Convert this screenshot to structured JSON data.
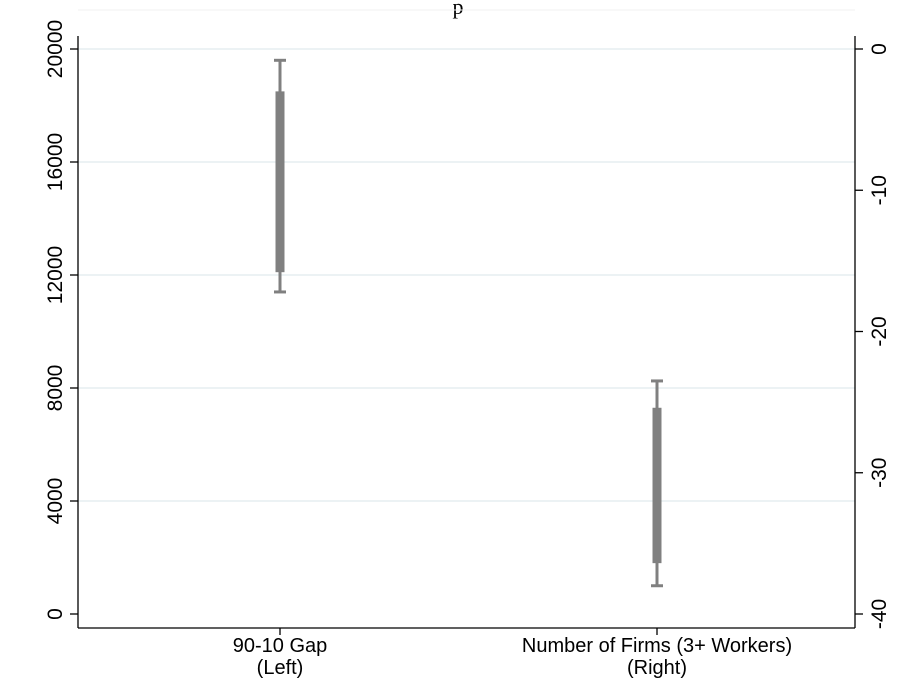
{
  "chart_data": {
    "type": "range",
    "title": "p",
    "categories": [
      {
        "line1": "90-10 Gap",
        "line2": "(Left)",
        "axis": "left"
      },
      {
        "line1": "Number of Firms (3+ Workers)",
        "line2": "(Right)",
        "axis": "right"
      }
    ],
    "series": [
      {
        "axis": "left",
        "category_index": 0,
        "whisker_low": 11400,
        "whisker_high": 19600,
        "bar_low": 12100,
        "bar_high": 18500
      },
      {
        "axis": "right",
        "category_index": 1,
        "whisker_low": -38.0,
        "whisker_high": -23.5,
        "bar_low": -36.4,
        "bar_high": -25.4
      }
    ],
    "left_axis": {
      "ylim": [
        0,
        20000
      ],
      "ticks": [
        0,
        4000,
        8000,
        12000,
        16000,
        20000
      ],
      "tick_labels": [
        "0",
        "4000",
        "8000",
        "12000",
        "16000",
        "20000"
      ]
    },
    "right_axis": {
      "ylim": [
        -40,
        0
      ],
      "ticks": [
        0,
        -10,
        -20,
        -30,
        -40
      ],
      "tick_labels": [
        "0",
        "-10",
        "-20",
        "-30",
        "-40"
      ]
    },
    "grid": true,
    "colors": {
      "range": "#808080",
      "grid": "#e6eef0",
      "axis": "#000000"
    }
  }
}
